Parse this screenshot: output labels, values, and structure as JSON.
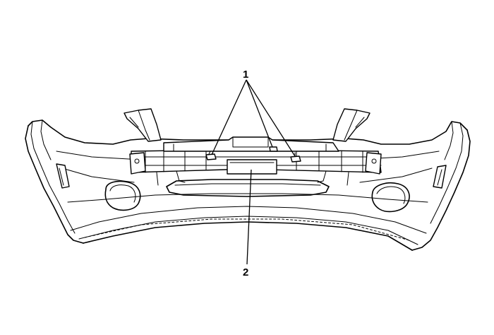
{
  "diagram": {
    "callouts": [
      {
        "label": "1"
      },
      {
        "label": "2"
      }
    ]
  }
}
